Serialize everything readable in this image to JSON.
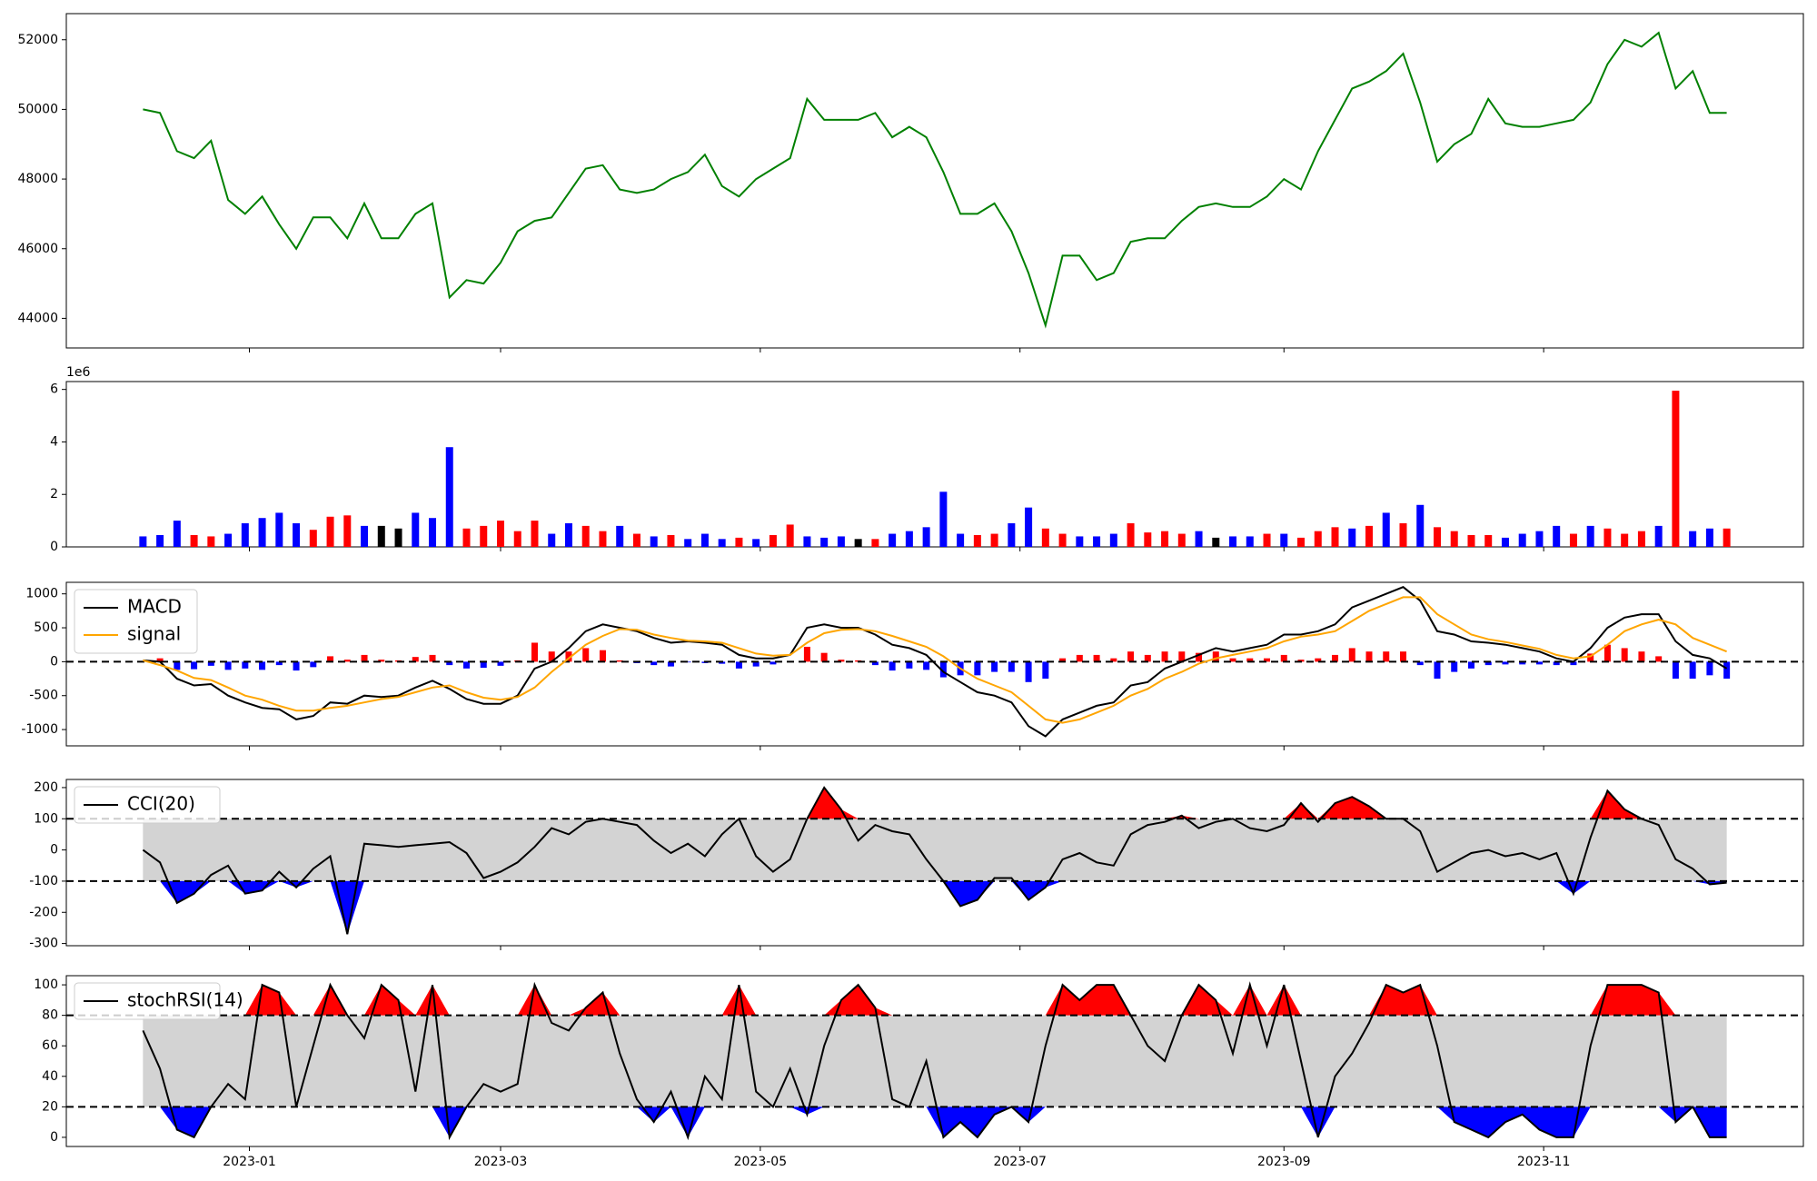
{
  "chart_data": {
    "type": "panels",
    "x": [
      19333,
      19337,
      19341,
      19345,
      19349,
      19353,
      19357,
      19361,
      19365,
      19369,
      19373,
      19377,
      19381,
      19385,
      19389,
      19393,
      19397,
      19401,
      19405,
      19409,
      19413,
      19417,
      19421,
      19425,
      19429,
      19433,
      19437,
      19441,
      19445,
      19449,
      19453,
      19457,
      19461,
      19465,
      19469,
      19473,
      19477,
      19481,
      19485,
      19489,
      19493,
      19497,
      19501,
      19505,
      19509,
      19513,
      19517,
      19521,
      19525,
      19529,
      19533,
      19537,
      19541,
      19545,
      19549,
      19553,
      19557,
      19561,
      19565,
      19569,
      19573,
      19577,
      19581,
      19585,
      19589,
      19593,
      19597,
      19601,
      19605,
      19609,
      19613,
      19617,
      19621,
      19625,
      19629,
      19633,
      19637,
      19641,
      19645,
      19649,
      19653,
      19657,
      19661,
      19665,
      19669,
      19673,
      19677,
      19681,
      19685,
      19689,
      19693,
      19697,
      19701,
      19705
    ],
    "xlim": [
      19315,
      19723
    ],
    "xticks": [
      {
        "value": 19358,
        "label": "2023-01"
      },
      {
        "value": 19417,
        "label": "2023-03"
      },
      {
        "value": 19478,
        "label": "2023-05"
      },
      {
        "value": 19539,
        "label": "2023-07"
      },
      {
        "value": 19601,
        "label": "2023-09"
      },
      {
        "value": 19662,
        "label": "2023-11"
      }
    ],
    "panels": [
      {
        "type": "line",
        "ylim": [
          43150,
          52750
        ],
        "yticks": [
          44000,
          46000,
          48000,
          50000,
          52000
        ],
        "series": [
          {
            "color": "green",
            "values": [
              50000,
              49900,
              48800,
              48600,
              49100,
              47400,
              47000,
              47500,
              46700,
              46000,
              46900,
              46900,
              46300,
              47300,
              46300,
              46300,
              47000,
              47300,
              44600,
              45100,
              45000,
              45600,
              46500,
              46800,
              46900,
              47600,
              48300,
              48400,
              47700,
              47600,
              47700,
              48000,
              48200,
              48700,
              47800,
              47500,
              48000,
              48300,
              48600,
              50300,
              49700,
              49700,
              49700,
              49900,
              49200,
              49500,
              49200,
              48200,
              47000,
              47000,
              47300,
              46500,
              45300,
              43800,
              45800,
              45800,
              45100,
              45300,
              46200,
              46300,
              46300,
              46800,
              47200,
              47300,
              47200,
              47200,
              47500,
              48000,
              47700,
              48800,
              49700,
              50600,
              50800,
              51100,
              51600,
              50200,
              48500,
              49000,
              49300,
              50300,
              49600,
              49500,
              49500,
              49600,
              49700,
              50200,
              51300,
              52000,
              51800,
              52200,
              50600,
              51100,
              49900,
              49900
            ]
          }
        ]
      },
      {
        "type": "bar",
        "ylim": [
          0,
          6300000
        ],
        "yticks": [
          0,
          {
            "value": 2000000,
            "label": "2"
          },
          {
            "value": 4000000,
            "label": "4"
          },
          {
            "value": 6000000,
            "label": "6"
          }
        ],
        "offset_label": "1e6",
        "values": [
          400000,
          450000,
          1000000,
          450000,
          400000,
          500000,
          900000,
          1100000,
          1300000,
          900000,
          650000,
          1150000,
          1200000,
          800000,
          800000,
          700000,
          1300000,
          1100000,
          3800000,
          700000,
          800000,
          1000000,
          600000,
          1000000,
          500000,
          900000,
          800000,
          600000,
          800000,
          500000,
          400000,
          450000,
          300000,
          500000,
          300000,
          350000,
          300000,
          450000,
          850000,
          400000,
          350000,
          400000,
          300000,
          300000,
          500000,
          600000,
          750000,
          2100000,
          500000,
          450000,
          500000,
          900000,
          1500000,
          700000,
          500000,
          400000,
          400000,
          500000,
          900000,
          550000,
          600000,
          500000,
          600000,
          350000,
          400000,
          400000,
          500000,
          500000,
          350000,
          600000,
          750000,
          700000,
          800000,
          1300000,
          900000,
          1600000,
          750000,
          600000,
          450000,
          450000,
          350000,
          500000,
          600000,
          800000,
          500000,
          800000,
          700000,
          500000,
          600000,
          800000,
          5950000,
          600000,
          700000,
          700000
        ],
        "colors": [
          "blue",
          "blue",
          "blue",
          "red",
          "red",
          "blue",
          "blue",
          "blue",
          "blue",
          "blue",
          "red",
          "red",
          "red",
          "blue",
          "black",
          "black",
          "blue",
          "blue",
          "blue",
          "red",
          "red",
          "red",
          "red",
          "red",
          "blue",
          "blue",
          "red",
          "red",
          "blue",
          "red",
          "blue",
          "red",
          "blue",
          "blue",
          "blue",
          "red",
          "blue",
          "red",
          "red",
          "blue",
          "blue",
          "blue",
          "black",
          "red",
          "blue",
          "blue",
          "blue",
          "blue",
          "blue",
          "red",
          "red",
          "blue",
          "blue",
          "red",
          "red",
          "blue",
          "blue",
          "blue",
          "red",
          "red",
          "red",
          "red",
          "blue",
          "black",
          "blue",
          "blue",
          "red",
          "blue",
          "red",
          "red",
          "red",
          "blue",
          "red",
          "blue",
          "red",
          "blue",
          "red",
          "red",
          "red",
          "red",
          "blue",
          "blue",
          "blue",
          "blue",
          "red",
          "blue",
          "red",
          "red",
          "red",
          "blue",
          "red",
          "blue",
          "blue",
          "red"
        ]
      },
      {
        "type": "macd",
        "ylim": [
          -1240,
          1170
        ],
        "yticks": [
          -1000,
          -500,
          0,
          500,
          1000
        ],
        "hline": 0,
        "legend": "upper left",
        "series": [
          {
            "name": "MACD",
            "color": "black",
            "values": [
              20,
              0,
              -250,
              -350,
              -330,
              -500,
              -600,
              -680,
              -700,
              -850,
              -800,
              -600,
              -620,
              -500,
              -520,
              -500,
              -380,
              -280,
              -400,
              -550,
              -620,
              -620,
              -500,
              -100,
              0,
              200,
              450,
              550,
              500,
              450,
              350,
              280,
              300,
              280,
              250,
              100,
              50,
              50,
              100,
              500,
              550,
              500,
              500,
              400,
              250,
              200,
              100,
              -150,
              -300,
              -450,
              -500,
              -600,
              -950,
              -1100,
              -850,
              -750,
              -650,
              -600,
              -350,
              -300,
              -100,
              0,
              100,
              200,
              150,
              200,
              250,
              400,
              400,
              450,
              550,
              800,
              900,
              1000,
              1100,
              900,
              450,
              400,
              300,
              280,
              250,
              200,
              150,
              50,
              0,
              200,
              500,
              650,
              700,
              700,
              300,
              100,
              50,
              -100
            ]
          },
          {
            "name": "signal",
            "color": "orange",
            "values": [
              20,
              -50,
              -130,
              -240,
              -270,
              -380,
              -500,
              -560,
              -650,
              -720,
              -720,
              -680,
              -650,
              -600,
              -550,
              -520,
              -450,
              -380,
              -350,
              -450,
              -530,
              -560,
              -520,
              -380,
              -150,
              50,
              250,
              380,
              480,
              470,
              400,
              350,
              310,
              300,
              280,
              200,
              120,
              90,
              100,
              280,
              420,
              470,
              480,
              450,
              380,
              300,
              220,
              80,
              -100,
              -250,
              -350,
              -450,
              -650,
              -850,
              -900,
              -850,
              -750,
              -650,
              -500,
              -400,
              -250,
              -150,
              -30,
              50,
              100,
              150,
              200,
              300,
              370,
              400,
              450,
              600,
              750,
              850,
              950,
              950,
              700,
              550,
              400,
              330,
              290,
              240,
              190,
              100,
              50,
              80,
              250,
              450,
              550,
              620,
              550,
              350,
              250,
              150
            ]
          }
        ],
        "histogram": {
          "positive_color": "red",
          "negative_color": "blue",
          "values": [
            0,
            50,
            -120,
            -110,
            -60,
            -120,
            -100,
            -120,
            -50,
            -130,
            -80,
            80,
            30,
            100,
            30,
            20,
            70,
            100,
            -50,
            -100,
            -90,
            -60,
            20,
            280,
            150,
            150,
            200,
            170,
            20,
            -20,
            -50,
            -70,
            -10,
            -20,
            -30,
            -100,
            -70,
            -40,
            0,
            220,
            130,
            30,
            20,
            -50,
            -130,
            -100,
            -120,
            -230,
            -200,
            -200,
            -150,
            -150,
            -300,
            -250,
            50,
            100,
            100,
            50,
            150,
            100,
            150,
            150,
            130,
            150,
            50,
            50,
            50,
            100,
            30,
            50,
            100,
            200,
            150,
            150,
            150,
            -50,
            -250,
            -150,
            -100,
            -50,
            -40,
            -40,
            -40,
            -50,
            -50,
            120,
            250,
            200,
            150,
            80,
            -250,
            -250,
            -200,
            -250
          ]
        }
      },
      {
        "type": "oscillator",
        "ylim": [
          -307,
          226
        ],
        "yticks": [
          -300,
          -200,
          -100,
          0,
          100,
          200
        ],
        "hlines": [
          100,
          -100
        ],
        "legend": "upper left",
        "band_color": "lightgray",
        "upper_color": "red",
        "lower_color": "blue",
        "series": [
          {
            "name": "CCI(20)",
            "color": "black",
            "values": [
              0,
              -40,
              -170,
              -140,
              -80,
              -50,
              -140,
              -130,
              -70,
              -120,
              -60,
              -20,
              -270,
              20,
              15,
              10,
              15,
              20,
              25,
              -10,
              -90,
              -70,
              -40,
              10,
              70,
              50,
              90,
              100,
              90,
              80,
              30,
              -10,
              20,
              -20,
              50,
              100,
              -20,
              -70,
              -30,
              100,
              200,
              130,
              30,
              80,
              60,
              50,
              -30,
              -100,
              -180,
              -160,
              -90,
              -90,
              -160,
              -120,
              -30,
              -10,
              -40,
              -50,
              50,
              80,
              90,
              110,
              70,
              90,
              100,
              70,
              60,
              80,
              150,
              90,
              150,
              170,
              140,
              100,
              100,
              60,
              -70,
              -40,
              -10,
              0,
              -20,
              -10,
              -30,
              -10,
              -140,
              40,
              190,
              130,
              100,
              80,
              -30,
              -60,
              -110,
              -105
            ]
          }
        ]
      },
      {
        "type": "oscillator",
        "ylim": [
          -6,
          106
        ],
        "yticks": [
          0,
          20,
          40,
          60,
          80,
          100
        ],
        "hlines": [
          80,
          20
        ],
        "legend": "upper left",
        "band_color": "lightgray",
        "upper_color": "red",
        "lower_color": "blue",
        "series": [
          {
            "name": "stochRSI(14)",
            "color": "black",
            "values": [
              70,
              45,
              5,
              0,
              20,
              35,
              25,
              100,
              95,
              20,
              60,
              100,
              80,
              65,
              100,
              90,
              30,
              100,
              0,
              20,
              35,
              30,
              35,
              100,
              75,
              70,
              85,
              95,
              55,
              25,
              10,
              30,
              0,
              40,
              25,
              100,
              30,
              20,
              45,
              15,
              60,
              90,
              100,
              85,
              25,
              20,
              50,
              0,
              10,
              0,
              15,
              20,
              10,
              60,
              100,
              90,
              100,
              100,
              80,
              60,
              50,
              80,
              100,
              90,
              55,
              100,
              60,
              100,
              50,
              0,
              40,
              55,
              75,
              100,
              95,
              100,
              60,
              10,
              5,
              0,
              10,
              15,
              5,
              0,
              0,
              60,
              100,
              100,
              100,
              95,
              10,
              20,
              0,
              0
            ]
          }
        ]
      }
    ]
  }
}
